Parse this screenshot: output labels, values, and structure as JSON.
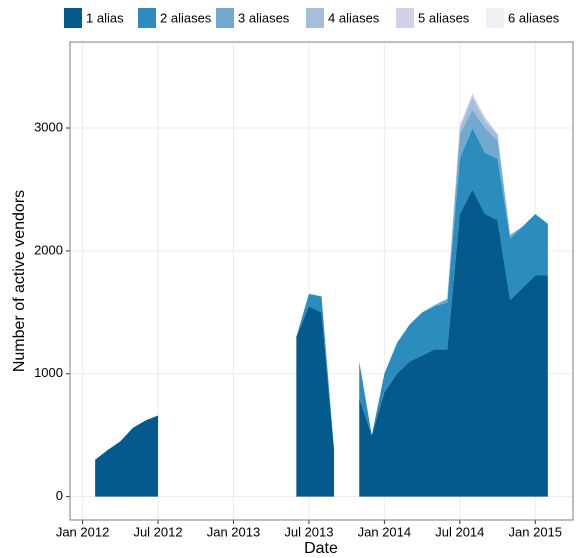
{
  "chart_data": {
    "type": "area",
    "stacked": true,
    "xlabel": "Date",
    "ylabel": "Number of active vendors",
    "x": [
      "2012-02",
      "2012-03",
      "2012-04",
      "2012-05",
      "2012-06",
      "2012-07",
      "2012-08",
      "2012-09",
      "2012-10",
      "2012-11",
      "2012-12",
      "2013-01",
      "2013-02",
      "2013-03",
      "2013-04",
      "2013-05",
      "2013-06",
      "2013-07",
      "2013-08",
      "2013-09",
      "2013-10",
      "2013-11",
      "2013-12",
      "2014-01",
      "2014-02",
      "2014-03",
      "2014-04",
      "2014-05",
      "2014-06",
      "2014-07",
      "2014-08",
      "2014-09",
      "2014-10",
      "2014-11",
      "2014-12",
      "2015-01",
      "2015-02"
    ],
    "series": [
      {
        "name": "1 alias",
        "color": "#045a8d",
        "values": [
          300,
          380,
          450,
          560,
          620,
          660,
          null,
          null,
          null,
          null,
          null,
          null,
          null,
          null,
          null,
          null,
          1300,
          1550,
          1500,
          380,
          null,
          800,
          500,
          850,
          1000,
          1100,
          1150,
          1200,
          1200,
          2300,
          2500,
          2300,
          2250,
          1600,
          1700,
          1800,
          1800
        ]
      },
      {
        "name": "2 aliases",
        "color": "#2b8cbe",
        "values": [
          0,
          0,
          0,
          0,
          0,
          0,
          null,
          null,
          null,
          null,
          null,
          null,
          null,
          null,
          null,
          null,
          0,
          100,
          130,
          0,
          null,
          300,
          0,
          150,
          250,
          300,
          350,
          350,
          380,
          450,
          500,
          500,
          500,
          500,
          500,
          500,
          420
        ]
      },
      {
        "name": "3 aliases",
        "color": "#74a9cf",
        "values": [
          0,
          0,
          0,
          0,
          0,
          0,
          null,
          null,
          null,
          null,
          null,
          null,
          null,
          null,
          null,
          null,
          0,
          0,
          0,
          0,
          null,
          0,
          0,
          0,
          0,
          0,
          0,
          10,
          30,
          200,
          150,
          200,
          150,
          30,
          0,
          0,
          0
        ]
      },
      {
        "name": "4 aliases",
        "color": "#a6bddb",
        "values": [
          0,
          0,
          0,
          0,
          0,
          0,
          null,
          null,
          null,
          null,
          null,
          null,
          null,
          null,
          null,
          null,
          0,
          0,
          0,
          0,
          null,
          0,
          0,
          0,
          0,
          0,
          0,
          0,
          0,
          50,
          100,
          60,
          50,
          0,
          0,
          0,
          0
        ]
      },
      {
        "name": "5 aliases",
        "color": "#d0d1e6",
        "values": [
          0,
          0,
          0,
          0,
          0,
          0,
          null,
          null,
          null,
          null,
          null,
          null,
          null,
          null,
          null,
          null,
          0,
          0,
          0,
          0,
          null,
          0,
          0,
          0,
          0,
          0,
          0,
          0,
          0,
          20,
          30,
          30,
          0,
          0,
          0,
          0,
          0
        ]
      },
      {
        "name": "6 aliases",
        "color": "#f1eef6",
        "values": [
          0,
          0,
          0,
          0,
          0,
          0,
          null,
          null,
          null,
          null,
          null,
          null,
          null,
          null,
          null,
          null,
          0,
          0,
          0,
          0,
          null,
          0,
          0,
          0,
          0,
          0,
          0,
          0,
          0,
          0,
          10,
          0,
          0,
          0,
          0,
          0,
          0
        ]
      }
    ],
    "xlim": [
      "2011-12",
      "2015-04"
    ],
    "xticks": [
      {
        "value": "2012-01",
        "label": "Jan 2012"
      },
      {
        "value": "2012-07",
        "label": "Jul 2012"
      },
      {
        "value": "2013-01",
        "label": "Jan 2013"
      },
      {
        "value": "2013-07",
        "label": "Jul 2013"
      },
      {
        "value": "2014-01",
        "label": "Jan 2014"
      },
      {
        "value": "2014-07",
        "label": "Jul 2014"
      },
      {
        "value": "2015-01",
        "label": "Jan 2015"
      }
    ],
    "ylim": [
      -190,
      3700
    ],
    "yticks": [
      0,
      1000,
      2000,
      3000
    ],
    "grid": true,
    "legend": "top"
  }
}
